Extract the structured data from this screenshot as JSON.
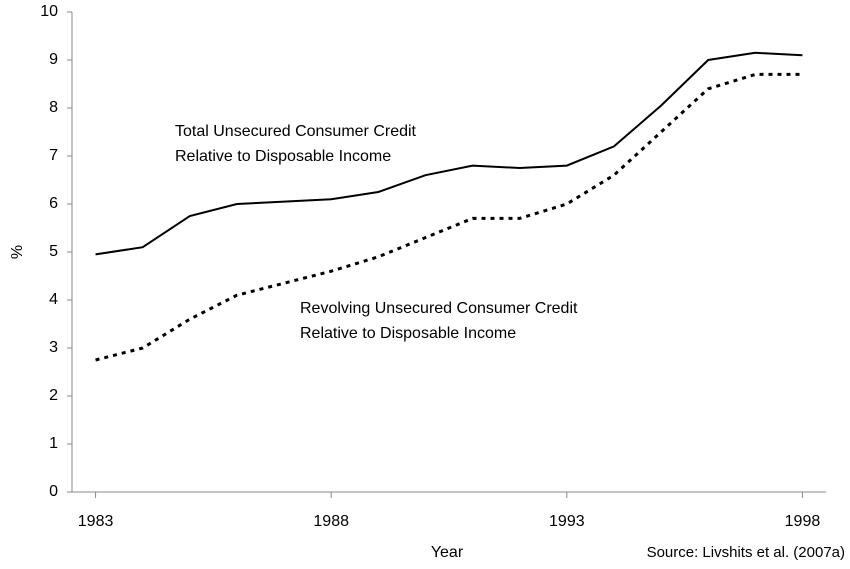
{
  "chart_data": {
    "type": "line",
    "x": [
      1983,
      1984,
      1985,
      1986,
      1987,
      1988,
      1989,
      1990,
      1991,
      1992,
      1993,
      1994,
      1995,
      1996,
      1997,
      1998
    ],
    "series": [
      {
        "color": "#000000",
        "dash": "solid",
        "values": [
          4.95,
          5.1,
          5.75,
          6.0,
          6.05,
          6.1,
          6.25,
          6.6,
          6.8,
          6.75,
          6.8,
          7.2,
          8.05,
          9.0,
          9.15,
          9.1
        ]
      },
      {
        "color": "#000000",
        "dash": "dotted",
        "values": [
          2.75,
          3.0,
          3.6,
          4.1,
          4.35,
          4.6,
          4.9,
          5.3,
          5.7,
          5.7,
          6.0,
          6.6,
          7.5,
          8.4,
          8.7,
          8.7
        ]
      }
    ],
    "annotations": [
      "Total Unsecured Consumer Credit",
      "Relative to Disposable Income",
      "Revolving Unsecured Consumer Credit",
      "Relative to Disposable Income"
    ],
    "x_label": "Year",
    "y_label": "%",
    "source": "Source: Livshits et al. (2007a)",
    "xlim": [
      1982.5,
      1998.5
    ],
    "xticks": [
      1983,
      1988,
      1993,
      1998
    ],
    "ylim": [
      0,
      10
    ],
    "yticks": [
      0,
      1,
      2,
      3,
      4,
      5,
      6,
      7,
      8,
      9,
      10
    ]
  }
}
